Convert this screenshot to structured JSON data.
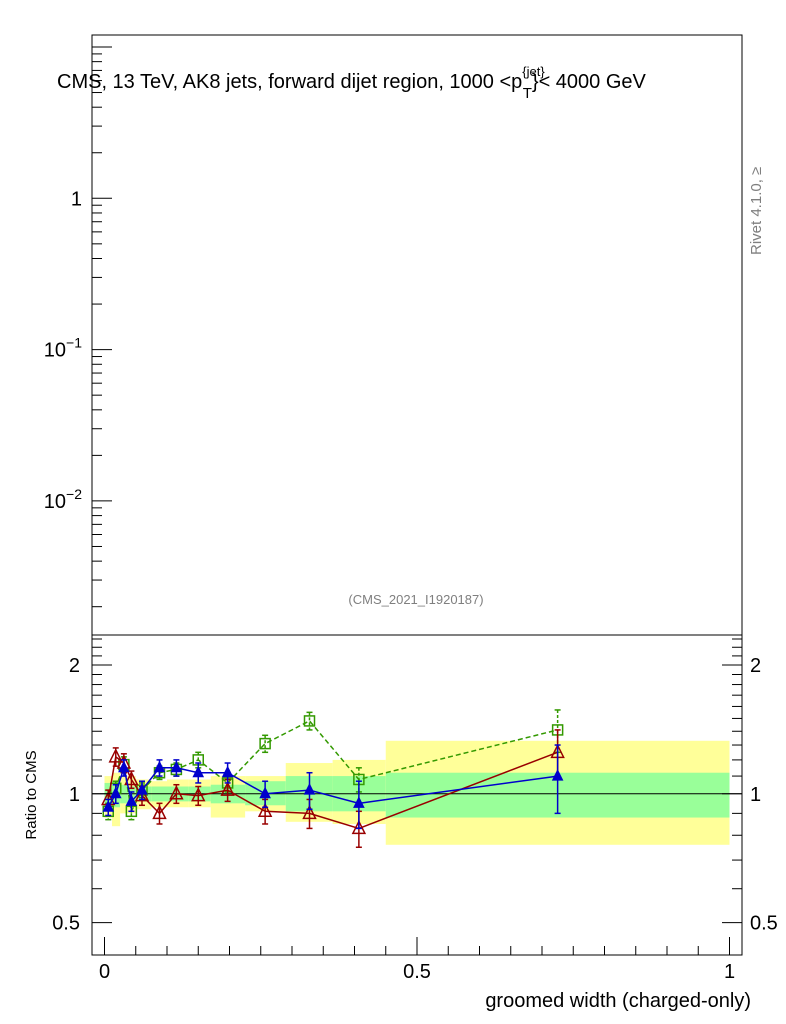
{
  "title": {
    "prefix": "CMS, 13 TeV, AK8 jets, forward dijet region, 1000 <p",
    "sup": "{jet}",
    "sub": "T",
    "suffix": "}< 4000 GeV"
  },
  "rivet_label": "Rivet 4.1.0, ≥",
  "analysis_label": "(CMS_2021_I1920187)",
  "chart_data": [
    {
      "type": "line",
      "panel": "main",
      "yscale": "log",
      "ylim": [
        0.0013,
        12
      ],
      "xlim": [
        -0.02,
        1.02
      ],
      "tick_labels": [
        {
          "value": 1,
          "base": "1",
          "exp": ""
        },
        {
          "value": 0.1,
          "base": "10",
          "exp": "−1"
        },
        {
          "value": 0.01,
          "base": "10",
          "exp": "−2"
        }
      ],
      "series": []
    },
    {
      "type": "line",
      "panel": "ratio",
      "ylabel": "Ratio to CMS",
      "xlabel": "groomed width (charged-only)",
      "xlim": [
        -0.02,
        1.02
      ],
      "ylim": [
        0.42,
        2.35
      ],
      "yscale": "log",
      "x_tick_labels": [
        {
          "value": 0,
          "label": "0"
        },
        {
          "value": 0.5,
          "label": "0.5"
        },
        {
          "value": 1,
          "label": "1"
        }
      ],
      "y_tick_labels": [
        {
          "value": 2,
          "label": "2"
        },
        {
          "value": 1,
          "label": "1"
        },
        {
          "value": 0.5,
          "label": "0.5"
        }
      ],
      "reference": 1,
      "bands": {
        "inner_color": "#99ff99",
        "outer_color": "#ffff99",
        "bins": [
          {
            "lo": 0.0,
            "hi": 0.012,
            "in_lo": 0.94,
            "in_hi": 1.06,
            "out_lo": 0.88,
            "out_hi": 1.1
          },
          {
            "lo": 0.012,
            "hi": 0.025,
            "in_lo": 0.93,
            "in_hi": 1.07,
            "out_lo": 0.84,
            "out_hi": 1.12
          },
          {
            "lo": 0.025,
            "hi": 0.037,
            "in_lo": 0.95,
            "in_hi": 1.05,
            "out_lo": 0.9,
            "out_hi": 1.1
          },
          {
            "lo": 0.037,
            "hi": 0.05,
            "in_lo": 0.96,
            "in_hi": 1.04,
            "out_lo": 0.9,
            "out_hi": 1.1
          },
          {
            "lo": 0.05,
            "hi": 0.075,
            "in_lo": 0.96,
            "in_hi": 1.04,
            "out_lo": 0.92,
            "out_hi": 1.08
          },
          {
            "lo": 0.075,
            "hi": 0.1,
            "in_lo": 0.96,
            "in_hi": 1.04,
            "out_lo": 0.93,
            "out_hi": 1.07
          },
          {
            "lo": 0.1,
            "hi": 0.135,
            "in_lo": 0.96,
            "in_hi": 1.04,
            "out_lo": 0.93,
            "out_hi": 1.08
          },
          {
            "lo": 0.135,
            "hi": 0.17,
            "in_lo": 0.96,
            "in_hi": 1.04,
            "out_lo": 0.93,
            "out_hi": 1.08
          },
          {
            "lo": 0.17,
            "hi": 0.225,
            "in_lo": 0.95,
            "in_hi": 1.05,
            "out_lo": 0.88,
            "out_hi": 1.1
          },
          {
            "lo": 0.225,
            "hi": 0.29,
            "in_lo": 0.94,
            "in_hi": 1.07,
            "out_lo": 0.91,
            "out_hi": 1.1
          },
          {
            "lo": 0.29,
            "hi": 0.365,
            "in_lo": 0.91,
            "in_hi": 1.1,
            "out_lo": 0.86,
            "out_hi": 1.18
          },
          {
            "lo": 0.365,
            "hi": 0.45,
            "in_lo": 0.91,
            "in_hi": 1.1,
            "out_lo": 0.85,
            "out_hi": 1.2
          },
          {
            "lo": 0.45,
            "hi": 1.0,
            "in_lo": 0.88,
            "in_hi": 1.12,
            "out_lo": 0.76,
            "out_hi": 1.33
          }
        ]
      },
      "series": [
        {
          "name": "MC (green dashed, open squares)",
          "color": "#339900",
          "marker": "square-open",
          "linestyle": "dashed",
          "x": [
            0.006,
            0.018,
            0.031,
            0.043,
            0.06,
            0.088,
            0.115,
            0.15,
            0.197,
            0.257,
            0.328,
            0.407,
            0.725
          ],
          "y": [
            0.91,
            1.03,
            1.17,
            0.91,
            1.02,
            1.12,
            1.14,
            1.2,
            1.06,
            1.31,
            1.48,
            1.08,
            1.41
          ],
          "y_err": [
            0.04,
            0.04,
            0.05,
            0.04,
            0.04,
            0.04,
            0.04,
            0.05,
            0.05,
            0.06,
            0.07,
            0.07,
            0.16
          ]
        },
        {
          "name": "MC (dark red solid, open triangles)",
          "color": "#990000",
          "marker": "triangle-open",
          "linestyle": "solid",
          "x": [
            0.006,
            0.018,
            0.031,
            0.043,
            0.06,
            0.088,
            0.115,
            0.15,
            0.197,
            0.257,
            0.328,
            0.407,
            0.725
          ],
          "y": [
            0.97,
            1.22,
            1.18,
            1.08,
            0.99,
            0.9,
            1.0,
            0.99,
            1.02,
            0.91,
            0.9,
            0.83,
            1.25
          ],
          "y_err": [
            0.05,
            0.06,
            0.06,
            0.05,
            0.05,
            0.05,
            0.05,
            0.05,
            0.06,
            0.06,
            0.07,
            0.08,
            0.16
          ]
        },
        {
          "name": "MC (blue solid, filled triangles)",
          "color": "#0000cc",
          "marker": "triangle-filled",
          "linestyle": "solid",
          "x": [
            0.006,
            0.018,
            0.031,
            0.043,
            0.06,
            0.088,
            0.115,
            0.15,
            0.197,
            0.257,
            0.328,
            0.407,
            0.725
          ],
          "y": [
            0.93,
            1.0,
            1.15,
            0.96,
            1.02,
            1.15,
            1.15,
            1.12,
            1.12,
            1.0,
            1.02,
            0.95,
            1.1
          ],
          "y_err": [
            0.04,
            0.05,
            0.05,
            0.05,
            0.05,
            0.05,
            0.05,
            0.06,
            0.06,
            0.07,
            0.1,
            0.12,
            0.2
          ]
        }
      ]
    }
  ]
}
